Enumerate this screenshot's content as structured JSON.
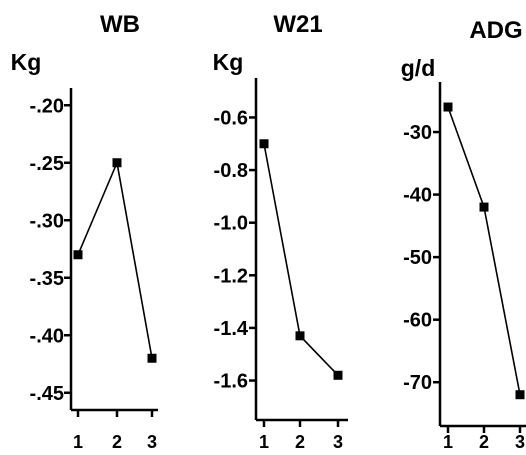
{
  "colors": {
    "ink": "#000000",
    "background": "#ffffff"
  },
  "chart_data": [
    {
      "type": "line",
      "title": "WB",
      "ylabel": "Kg",
      "xlabel": "",
      "categories": [
        "1",
        "2",
        "3"
      ],
      "values": [
        -0.33,
        -0.25,
        -0.42
      ],
      "yticks": [
        -0.2,
        -0.25,
        -0.3,
        -0.35,
        -0.4,
        -0.45
      ],
      "ytick_labels": [
        "-.20",
        "-.25",
        "-.30",
        "-.35",
        "-.40",
        "-.45"
      ],
      "ylim": [
        -0.465,
        -0.185
      ],
      "grid": false,
      "marker": "square"
    },
    {
      "type": "line",
      "title": "W21",
      "ylabel": "Kg",
      "xlabel": "",
      "categories": [
        "1",
        "2",
        "3"
      ],
      "values": [
        -0.7,
        -1.43,
        -1.58
      ],
      "yticks": [
        -0.6,
        -0.8,
        -1.0,
        -1.2,
        -1.4,
        -1.6
      ],
      "ytick_labels": [
        "-0.6",
        "-0.8",
        "-1.0",
        "-1.2",
        "-1.4",
        "-1.6"
      ],
      "ylim": [
        -1.75,
        -0.45
      ],
      "grid": false,
      "marker": "square"
    },
    {
      "type": "line",
      "title": "ADG",
      "ylabel": "g/d",
      "xlabel": "",
      "categories": [
        "1",
        "2",
        "3"
      ],
      "values": [
        -26,
        -42,
        -72
      ],
      "yticks": [
        -30,
        -40,
        -50,
        -60,
        -70
      ],
      "ytick_labels": [
        "-30",
        "-40",
        "-50",
        "-60",
        "-70"
      ],
      "ylim": [
        -77,
        -22
      ],
      "grid": false,
      "marker": "square"
    }
  ]
}
